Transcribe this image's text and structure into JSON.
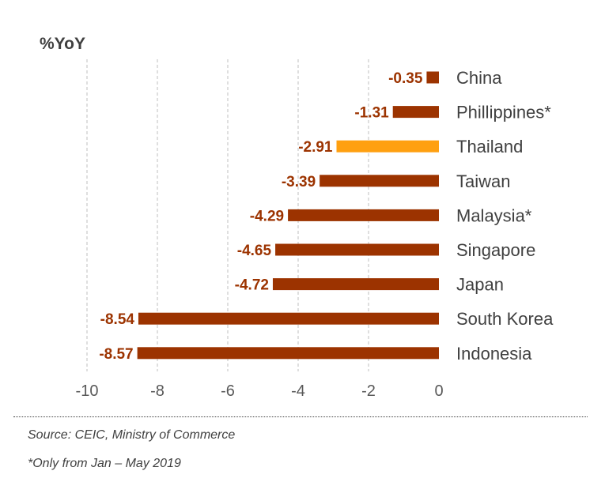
{
  "chart_data": {
    "type": "bar",
    "orientation": "horizontal",
    "ylabel": "%YoY",
    "categories": [
      "China",
      "Phillippines*",
      "Thailand",
      "Taiwan",
      "Malaysia*",
      "Singapore",
      "Japan",
      "South Korea",
      "Indonesia"
    ],
    "values": [
      -0.35,
      -1.31,
      -2.91,
      -3.39,
      -4.29,
      -4.65,
      -4.72,
      -8.54,
      -8.57
    ],
    "value_labels": [
      "-0.35",
      "-1.31",
      "-2.91",
      "-3.39",
      "-4.29",
      "-4.65",
      "-4.72",
      "-8.54",
      "-8.57"
    ],
    "highlight": "Thailand",
    "xlim": [
      -10,
      0
    ],
    "xticks": [
      -10,
      -8,
      -6,
      -4,
      -2,
      0
    ],
    "grid": true,
    "colors": {
      "bar": "#9c3300",
      "highlight": "#ffa010",
      "label": "#9c3300"
    }
  },
  "notes": {
    "source": "Source: CEIC, Ministry of Commerce",
    "footnote": "*Only from Jan – May 2019"
  }
}
